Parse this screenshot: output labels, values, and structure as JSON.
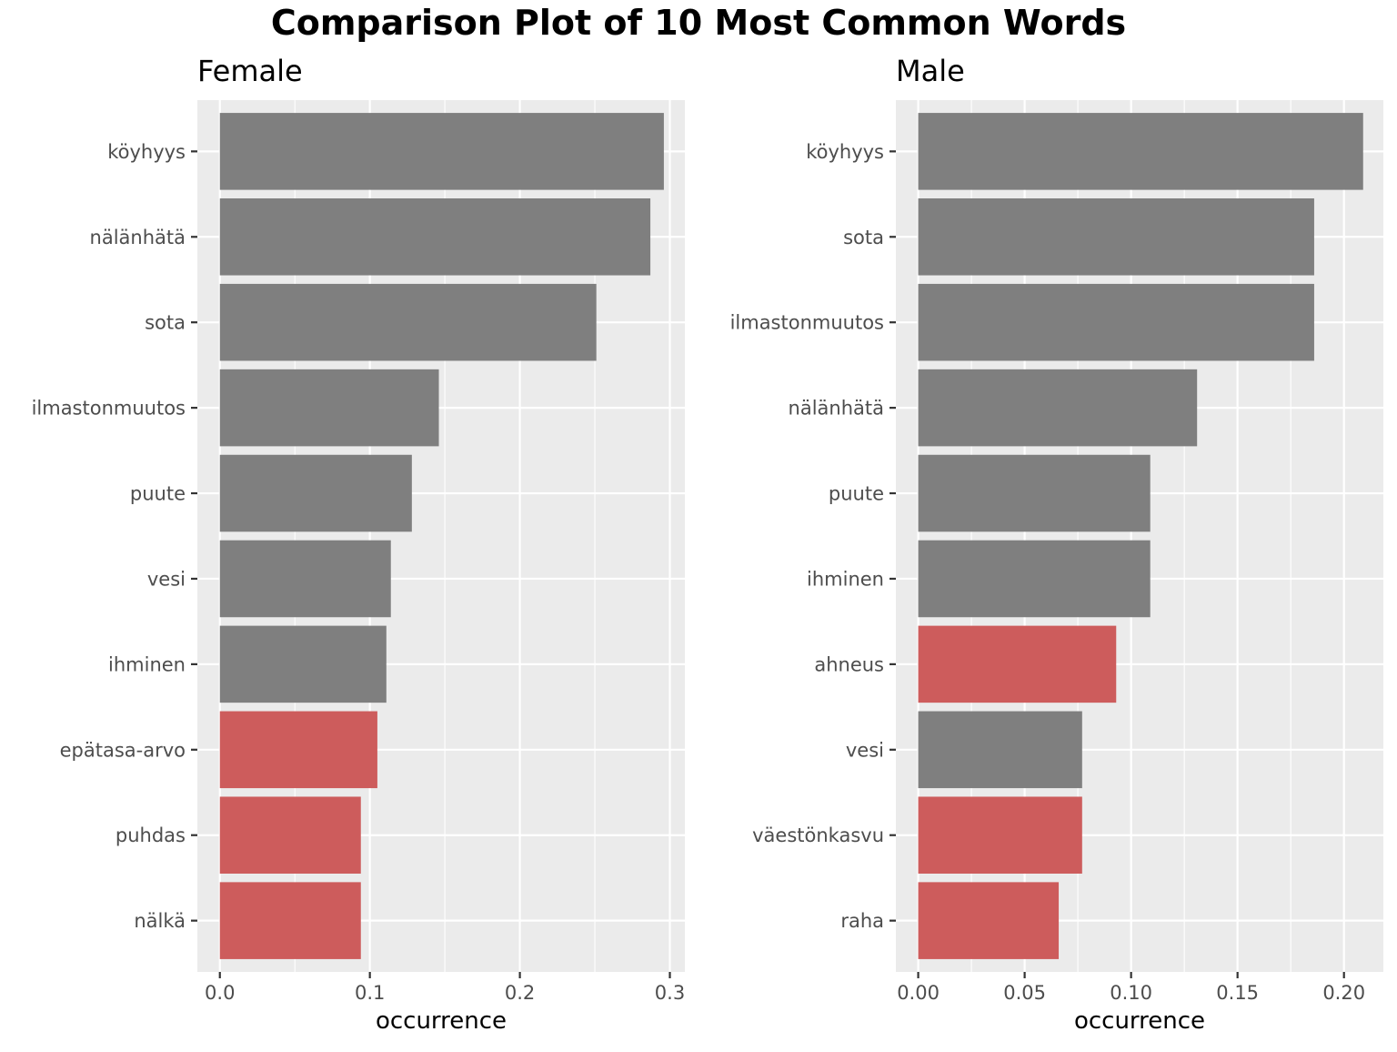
{
  "title": "Comparison Plot of 10 Most Common Words",
  "colors": {
    "panel_background": "#ebebeb",
    "gridline": "#ffffff",
    "tick_text": "#4d4d4d",
    "default_bar": "#7f7f7f",
    "highlight_bar": "#cd5c5c"
  },
  "chart_data": [
    {
      "type": "bar",
      "orientation": "horizontal",
      "title": "Female",
      "xlabel": "occurrence",
      "ylabel": "",
      "xlim": [
        -0.015,
        0.31
      ],
      "xticks": [
        0.0,
        0.1,
        0.2,
        0.3
      ],
      "xtick_labels": [
        "0.0",
        "0.1",
        "0.2",
        "0.3"
      ],
      "grid": true,
      "categories": [
        "köyhyys",
        "nälänhätä",
        "sota",
        "ilmastonmuutos",
        "puute",
        "vesi",
        "ihminen",
        "epätasa-arvo",
        "puhdas",
        "nälkä"
      ],
      "values": [
        0.296,
        0.287,
        0.251,
        0.146,
        0.128,
        0.114,
        0.111,
        0.105,
        0.094,
        0.094
      ],
      "highlighted": [
        false,
        false,
        false,
        false,
        false,
        false,
        false,
        true,
        true,
        true
      ]
    },
    {
      "type": "bar",
      "orientation": "horizontal",
      "title": "Male",
      "xlabel": "occurrence",
      "ylabel": "",
      "xlim": [
        -0.0105,
        0.2185
      ],
      "xticks": [
        0.0,
        0.05,
        0.1,
        0.15,
        0.2
      ],
      "xtick_labels": [
        "0.00",
        "0.05",
        "0.10",
        "0.15",
        "0.20"
      ],
      "grid": true,
      "categories": [
        "köyhyys",
        "sota",
        "ilmastonmuutos",
        "nälänhätä",
        "puute",
        "ihminen",
        "ahneus",
        "vesi",
        "väestönkasvu",
        "raha"
      ],
      "values": [
        0.209,
        0.186,
        0.186,
        0.131,
        0.109,
        0.109,
        0.093,
        0.077,
        0.077,
        0.066
      ],
      "highlighted": [
        false,
        false,
        false,
        false,
        false,
        false,
        true,
        false,
        true,
        true
      ]
    }
  ]
}
